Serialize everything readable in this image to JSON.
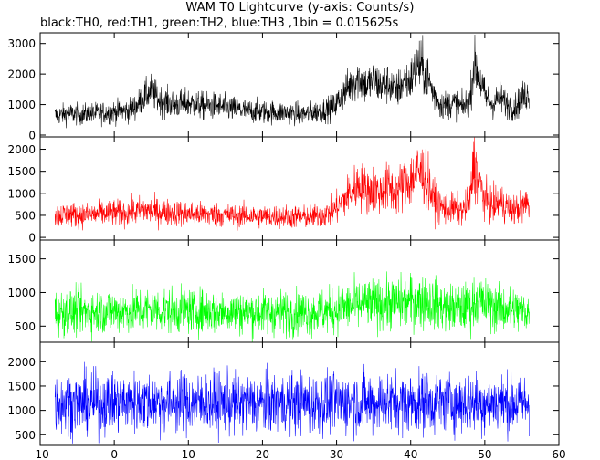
{
  "chart_data": {
    "type": "line",
    "title": "WAM T0 Lightcurve (y-axis: Counts/s)",
    "subtitle": "black:TH0, red:TH1, green:TH2, blue:TH3 ,1bin = 0.015625s",
    "xlim": [
      -10,
      60
    ],
    "xticks": [
      -10,
      0,
      10,
      20,
      30,
      40,
      50,
      60
    ],
    "grid": false,
    "panels": [
      {
        "name": "TH0",
        "color": "#000000",
        "ylim": [
          -60,
          3350
        ],
        "yticks": [
          0,
          1000,
          2000,
          3000
        ],
        "t": [
          -8,
          -6,
          -4,
          -2,
          0,
          2,
          3,
          4,
          5,
          6,
          8,
          10,
          12,
          14,
          16,
          18,
          20,
          22,
          24,
          26,
          28,
          29.5,
          30.5,
          31.5,
          33,
          34,
          35,
          36,
          37,
          38,
          39,
          40,
          41,
          42,
          43,
          44,
          45,
          46,
          47,
          48,
          48.5,
          49,
          50,
          51,
          52,
          53,
          54,
          55,
          56
        ],
        "y": [
          650,
          700,
          680,
          720,
          760,
          800,
          950,
          1250,
          1450,
          1150,
          1000,
          1050,
          950,
          950,
          850,
          800,
          760,
          750,
          720,
          700,
          800,
          900,
          1200,
          1550,
          1900,
          1600,
          1800,
          1600,
          1700,
          1450,
          1700,
          1800,
          2300,
          2100,
          1400,
          1000,
          1000,
          1050,
          900,
          1150,
          2300,
          2100,
          1300,
          1000,
          1250,
          1000,
          900,
          1200,
          1400
        ],
        "spread": [
          300,
          320,
          320,
          330,
          340,
          360,
          400,
          450,
          500,
          450,
          420,
          430,
          410,
          400,
          380,
          360,
          350,
          340,
          330,
          330,
          350,
          380,
          450,
          550,
          650,
          600,
          620,
          580,
          600,
          560,
          620,
          650,
          800,
          750,
          550,
          420,
          420,
          430,
          400,
          450,
          800,
          750,
          520,
          420,
          480,
          420,
          400,
          460,
          520
        ]
      },
      {
        "name": "TH1",
        "color": "#ff0000",
        "ylim": [
          -60,
          2280
        ],
        "yticks": [
          0,
          500,
          1000,
          1500,
          2000
        ],
        "t": [
          -8,
          -6,
          -4,
          -2,
          0,
          2,
          4,
          6,
          8,
          10,
          12,
          14,
          16,
          18,
          20,
          22,
          24,
          26,
          28,
          29.5,
          30.5,
          31.5,
          33,
          34,
          35,
          36,
          37,
          38,
          39,
          40,
          41,
          42,
          43,
          44,
          45,
          46,
          47,
          48,
          48.5,
          49,
          50,
          51,
          52,
          53,
          54,
          55,
          56
        ],
        "y": [
          500,
          520,
          500,
          530,
          550,
          560,
          620,
          580,
          560,
          540,
          520,
          510,
          500,
          490,
          480,
          480,
          470,
          460,
          500,
          600,
          750,
          950,
          1200,
          1050,
          1100,
          1000,
          1150,
          1000,
          1200,
          1300,
          1500,
          1400,
          900,
          700,
          650,
          650,
          600,
          800,
          1700,
          1400,
          850,
          700,
          800,
          700,
          620,
          700,
          800
        ],
        "spread": [
          250,
          260,
          250,
          260,
          270,
          270,
          300,
          280,
          270,
          260,
          250,
          250,
          250,
          240,
          240,
          240,
          240,
          230,
          250,
          300,
          360,
          430,
          520,
          480,
          500,
          460,
          520,
          460,
          540,
          580,
          650,
          620,
          420,
          340,
          320,
          320,
          300,
          380,
          700,
          600,
          400,
          340,
          380,
          340,
          300,
          340,
          380
        ]
      },
      {
        "name": "TH2",
        "color": "#00ff00",
        "ylim": [
          260,
          1780
        ],
        "yticks": [
          500,
          1000,
          1500
        ],
        "t": [
          -8,
          -4,
          0,
          4,
          8,
          12,
          16,
          20,
          24,
          28,
          30,
          32,
          34,
          36,
          38,
          40,
          42,
          44,
          46,
          48,
          49,
          50,
          52,
          54,
          56
        ],
        "y": [
          700,
          710,
          720,
          740,
          730,
          720,
          710,
          700,
          700,
          710,
          740,
          800,
          820,
          830,
          840,
          860,
          870,
          800,
          760,
          780,
          900,
          820,
          760,
          740,
          720
        ],
        "spread": [
          300,
          300,
          300,
          310,
          300,
          300,
          300,
          300,
          300,
          300,
          310,
          330,
          340,
          340,
          350,
          360,
          360,
          330,
          320,
          330,
          360,
          340,
          320,
          310,
          300
        ]
      },
      {
        "name": "TH3",
        "color": "#0000ff",
        "ylim": [
          280,
          2400
        ],
        "yticks": [
          500,
          1000,
          1500,
          2000
        ],
        "t": [
          -8,
          -4,
          0,
          4,
          8,
          12,
          16,
          20,
          24,
          28,
          32,
          36,
          40,
          44,
          48,
          52,
          56
        ],
        "y": [
          1150,
          1150,
          1160,
          1160,
          1150,
          1150,
          1140,
          1140,
          1150,
          1150,
          1160,
          1160,
          1160,
          1150,
          1160,
          1150,
          1150
        ],
        "spread": [
          560,
          560,
          560,
          570,
          560,
          560,
          560,
          560,
          560,
          560,
          570,
          570,
          570,
          560,
          570,
          560,
          560
        ]
      }
    ]
  }
}
